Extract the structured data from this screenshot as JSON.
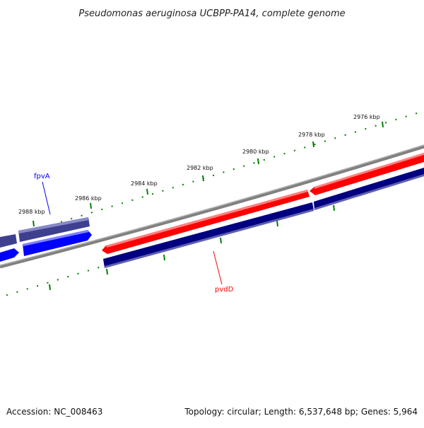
{
  "title": "Pseudomonas aeruginosa UCBPP-PA14, complete genome",
  "scale_labels": [
    "2976 kbp",
    "2978 kbp",
    "2980 kbp",
    "2982 kbp",
    "2984 kbp",
    "2986 kbp",
    "2988 kbp"
  ],
  "gene_labels": [
    {
      "name": "fpvA",
      "color": "#0000ff"
    },
    {
      "name": "pvdD",
      "color": "#ff0000"
    }
  ],
  "footer": {
    "accession": "Accession: NC_008463",
    "topology": "Topology: circular; Length: 6,537,648 bp; Genes: 5,964"
  },
  "colors": {
    "backbone": "#808080",
    "forward_gene": "#ff0000",
    "reverse_gene": "#000080",
    "fpvA_gene": "#0000ff",
    "fpvA_pale": "#3f3f8f",
    "tick": "#007f00"
  }
}
